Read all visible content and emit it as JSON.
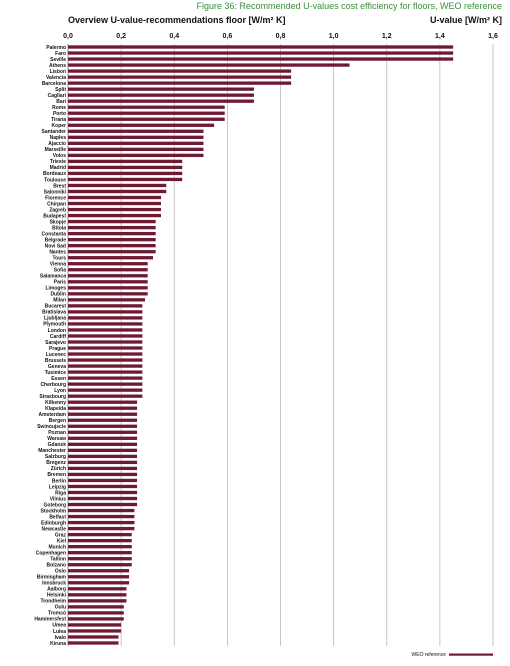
{
  "figure_caption": "Figure 36: Recommended U-values cost efficiency for floors, WEO reference",
  "chart_data": {
    "type": "bar",
    "orientation": "horizontal",
    "title": "Overview U-value-recommendations floor [W/m² K]",
    "unit_label": "U-value [W/m² K]",
    "xlim": [
      0,
      1.6
    ],
    "xticks": [
      "0,0",
      "0,2",
      "0,4",
      "0,6",
      "0,8",
      "1,0",
      "1,2",
      "1,4",
      "1,6"
    ],
    "xtick_values": [
      0,
      0.2,
      0.4,
      0.6,
      0.8,
      1.0,
      1.2,
      1.4,
      1.6
    ],
    "grid": true,
    "legend_position": "bottom-right",
    "bar_color": "#6e1a33",
    "series": [
      {
        "name": "WEO reference",
        "color": "#6e1a33"
      }
    ],
    "categories": [
      "Palermo",
      "Faro",
      "Seville",
      "Athens",
      "Lisbon",
      "Valencia",
      "Barcelona",
      "Split",
      "Cagliari",
      "Bari",
      "Rome",
      "Porto",
      "Tirana",
      "Koper",
      "Santander",
      "Naples",
      "Ajaccio",
      "Marseille",
      "Volos",
      "Trieste",
      "Madrid",
      "Bordeaux",
      "Toulouse",
      "Brest",
      "Salonniki",
      "Florence",
      "Chirpan",
      "Zagreb",
      "Budapest",
      "Skopje",
      "Bitola",
      "Constanta",
      "Belgrade",
      "Novi Sad",
      "Nantes",
      "Tours",
      "Vienna",
      "Sofia",
      "Salamanca",
      "Paris",
      "Limoges",
      "Dublin",
      "Milan",
      "Bucarest",
      "Bratislava",
      "Ljubljana",
      "Plymouth",
      "London",
      "Cardiff",
      "Sarajevo",
      "Prague",
      "Lucenec",
      "Brussels",
      "Geneva",
      "Tusimice",
      "Essen",
      "Cherbourg",
      "Lyon",
      "Strasbourg",
      "Kilkenny",
      "Klapeida",
      "Amsterdam",
      "Bergen",
      "Swinoujscie",
      "Poznan",
      "Warsaw",
      "Gdansk",
      "Manchester",
      "Salzburg",
      "Bregenz",
      "Zürich",
      "Bremen",
      "Berlin",
      "Leipzig",
      "Riga",
      "Vilnius",
      "Goteborg",
      "Stockholm",
      "Belfast",
      "Edinburgh",
      "Newcastle",
      "Graz",
      "Kiel",
      "Munich",
      "Copenhagen",
      "Tallinn",
      "Bolzano",
      "Oslo",
      "Birmingham",
      "Innsbruck",
      "Aalborg",
      "Helsinki",
      "Trondheim",
      "Oulu",
      "Tromsö",
      "Hammersfest",
      "Umea",
      "Lulea",
      "Ivalo",
      "Kiruna"
    ],
    "values": [
      1.45,
      1.45,
      1.45,
      1.06,
      0.84,
      0.84,
      0.84,
      0.7,
      0.7,
      0.7,
      0.59,
      0.59,
      0.59,
      0.55,
      0.51,
      0.51,
      0.51,
      0.51,
      0.51,
      0.43,
      0.43,
      0.43,
      0.43,
      0.37,
      0.37,
      0.35,
      0.35,
      0.35,
      0.35,
      0.33,
      0.33,
      0.33,
      0.33,
      0.33,
      0.33,
      0.32,
      0.3,
      0.3,
      0.3,
      0.3,
      0.3,
      0.3,
      0.29,
      0.28,
      0.28,
      0.28,
      0.28,
      0.28,
      0.28,
      0.28,
      0.28,
      0.28,
      0.28,
      0.28,
      0.28,
      0.28,
      0.28,
      0.28,
      0.28,
      0.26,
      0.26,
      0.26,
      0.26,
      0.26,
      0.26,
      0.26,
      0.26,
      0.26,
      0.26,
      0.26,
      0.26,
      0.26,
      0.26,
      0.26,
      0.26,
      0.26,
      0.26,
      0.25,
      0.25,
      0.25,
      0.25,
      0.24,
      0.24,
      0.24,
      0.24,
      0.24,
      0.24,
      0.23,
      0.23,
      0.23,
      0.22,
      0.22,
      0.22,
      0.21,
      0.21,
      0.21,
      0.2,
      0.2,
      0.19,
      0.19
    ]
  }
}
